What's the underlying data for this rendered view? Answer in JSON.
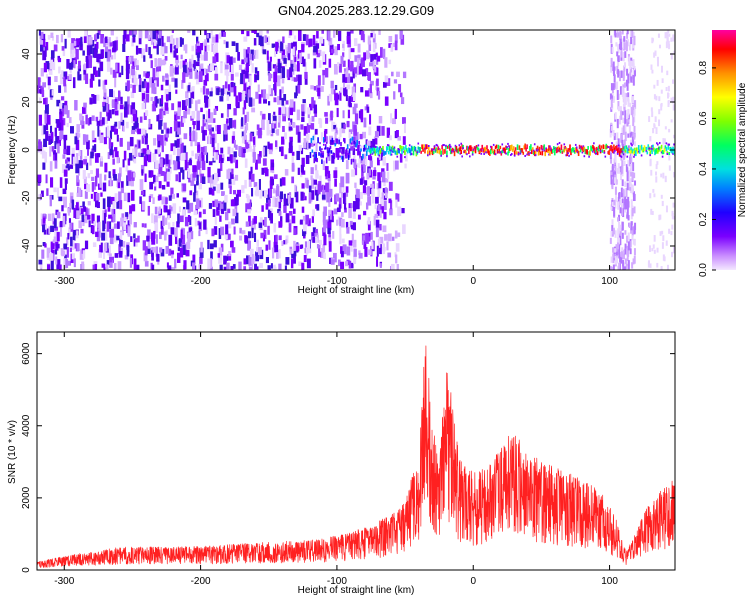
{
  "page_title": "GN04.2025.283.12.29.G09",
  "colors": {
    "spectrogram_low": "#7a00ff",
    "spectrogram_high": "#ff0030",
    "snr_line": "#ff2020",
    "axis": "#000000"
  },
  "chart_data": [
    {
      "type": "heatmap",
      "name": "spectrogram",
      "title": "",
      "xlabel": "Height of straight line (km)",
      "ylabel": "Frequency (Hz)",
      "xlim": [
        -320,
        148
      ],
      "ylim": [
        -50,
        50
      ],
      "x_ticks": [
        -300,
        -200,
        -100,
        0,
        100
      ],
      "x_tick_labels": [
        "-300",
        "-200",
        "-100",
        "0",
        "100"
      ],
      "y_ticks": [
        -40,
        -20,
        0,
        20,
        40
      ],
      "y_tick_labels": [
        "-40",
        "-20",
        "0",
        "20",
        "40"
      ],
      "colorbar": {
        "label": "Normalized spectral amplitude",
        "range": [
          0.0,
          0.95
        ],
        "ticks": [
          0.0,
          0.2,
          0.4,
          0.6,
          0.8
        ],
        "tick_labels": [
          "0.0",
          "0.2",
          "0.4",
          "0.6",
          "0.8"
        ],
        "colorscale": "rainbow (purple to red)"
      },
      "features": {
        "dense_noise_x_range": [
          -320,
          -80
        ],
        "signal_band_frequency_hz": 0,
        "signal_band_x_range": [
          -80,
          148
        ],
        "peak_amplitude_x_range": [
          -40,
          110
        ],
        "noise_column_x_range": [
          100,
          118
        ]
      }
    },
    {
      "type": "line",
      "name": "snr",
      "title": "",
      "xlabel": "Height of straight line (km)",
      "ylabel": "SNR (10 * v/v)",
      "xlim": [
        -320,
        148
      ],
      "ylim": [
        0,
        6600
      ],
      "x_ticks": [
        -300,
        -200,
        -100,
        0,
        100
      ],
      "x_tick_labels": [
        "-300",
        "-200",
        "-100",
        "0",
        "100"
      ],
      "y_ticks": [
        0,
        2000,
        4000,
        6000
      ],
      "y_tick_labels": [
        "0",
        "2000",
        "4000",
        "6000"
      ],
      "series": [
        {
          "name": "",
          "envelope_x": [
            -320,
            -300,
            -260,
            -200,
            -150,
            -110,
            -80,
            -60,
            -50,
            -40,
            -35,
            -30,
            -25,
            -20,
            -10,
            0,
            10,
            25,
            30,
            40,
            60,
            80,
            95,
            105,
            112,
            118,
            125,
            135,
            148
          ],
          "envelope_y": [
            220,
            380,
            620,
            650,
            760,
            850,
            1150,
            1500,
            1900,
            3200,
            6500,
            4200,
            2800,
            5800,
            3100,
            2700,
            2800,
            3600,
            3800,
            3200,
            2800,
            2500,
            2100,
            1400,
            500,
            900,
            1600,
            2100,
            2500
          ]
        }
      ]
    }
  ]
}
